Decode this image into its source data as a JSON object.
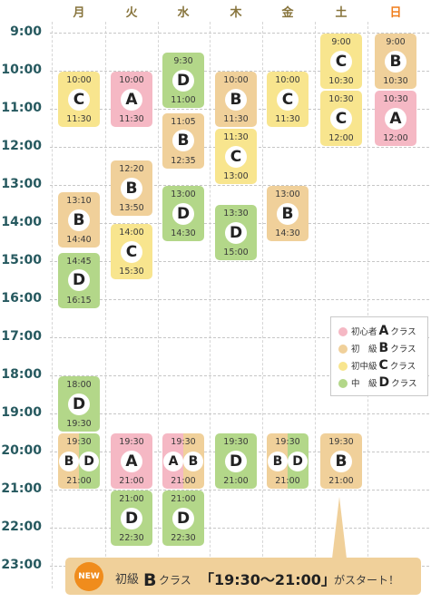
{
  "days": [
    "月",
    "火",
    "水",
    "木",
    "金",
    "土",
    "日"
  ],
  "hours": [
    "9:00",
    "10:00",
    "11:00",
    "12:00",
    "13:00",
    "14:00",
    "15:00",
    "16:00",
    "17:00",
    "18:00",
    "19:00",
    "20:00",
    "21:00",
    "22:00",
    "23:00"
  ],
  "colors": {
    "A": "#f5b8c4",
    "B": "#f0d09a",
    "C": "#f8e58e",
    "D": "#b3d789",
    "hour_text": "#26595f",
    "day_text": "#87743c",
    "sunday_text": "#f07e1c",
    "badge": "#f08c1c"
  },
  "blocks": [
    {
      "day": 0,
      "start": "10:00",
      "end": "11:30",
      "cls": "C"
    },
    {
      "day": 0,
      "start": "13:10",
      "end": "14:40",
      "cls": "B"
    },
    {
      "day": 0,
      "start": "14:45",
      "end": "16:15",
      "cls": "D"
    },
    {
      "day": 0,
      "start": "18:00",
      "end": "19:30",
      "cls": "D"
    },
    {
      "day": 0,
      "start": "19:30",
      "end": "21:00",
      "cls": "BD"
    },
    {
      "day": 1,
      "start": "10:00",
      "end": "11:30",
      "cls": "A"
    },
    {
      "day": 1,
      "start": "12:20",
      "end": "13:50",
      "cls": "B"
    },
    {
      "day": 1,
      "start": "14:00",
      "end": "15:30",
      "cls": "C"
    },
    {
      "day": 1,
      "start": "19:30",
      "end": "21:00",
      "cls": "A"
    },
    {
      "day": 1,
      "start": "21:00",
      "end": "22:30",
      "cls": "D"
    },
    {
      "day": 2,
      "start": "9:30",
      "end": "11:00",
      "cls": "D"
    },
    {
      "day": 2,
      "start": "11:05",
      "end": "12:35",
      "cls": "B"
    },
    {
      "day": 2,
      "start": "13:00",
      "end": "14:30",
      "cls": "D"
    },
    {
      "day": 2,
      "start": "19:30",
      "end": "21:00",
      "cls": "AB"
    },
    {
      "day": 2,
      "start": "21:00",
      "end": "22:30",
      "cls": "D"
    },
    {
      "day": 3,
      "start": "10:00",
      "end": "11:30",
      "cls": "B"
    },
    {
      "day": 3,
      "start": "11:30",
      "end": "13:00",
      "cls": "C"
    },
    {
      "day": 3,
      "start": "13:30",
      "end": "15:00",
      "cls": "D"
    },
    {
      "day": 3,
      "start": "19:30",
      "end": "21:00",
      "cls": "D"
    },
    {
      "day": 4,
      "start": "10:00",
      "end": "11:30",
      "cls": "C"
    },
    {
      "day": 4,
      "start": "13:00",
      "end": "14:30",
      "cls": "B"
    },
    {
      "day": 4,
      "start": "19:30",
      "end": "21:00",
      "cls": "BD"
    },
    {
      "day": 5,
      "start": "9:00",
      "end": "10:30",
      "cls": "C"
    },
    {
      "day": 5,
      "start": "10:30",
      "end": "12:00",
      "cls": "C"
    },
    {
      "day": 5,
      "start": "19:30",
      "end": "21:00",
      "cls": "B"
    },
    {
      "day": 6,
      "start": "9:00",
      "end": "10:30",
      "cls": "B"
    },
    {
      "day": 6,
      "start": "10:30",
      "end": "12:00",
      "cls": "A"
    }
  ],
  "legend": [
    {
      "prefix": "初心者",
      "letter": "A",
      "suffix": "クラス",
      "color": "#f5b8c4"
    },
    {
      "prefix": "初　級",
      "letter": "B",
      "suffix": "クラス",
      "color": "#f0d09a"
    },
    {
      "prefix": "初中級",
      "letter": "C",
      "suffix": "クラス",
      "color": "#f8e58e"
    },
    {
      "prefix": "中　級",
      "letter": "D",
      "suffix": "クラス",
      "color": "#b3d789"
    }
  ],
  "banner": {
    "badge": "NEW",
    "level": "初級",
    "letter": "B",
    "class_word": "クラス",
    "time": "「19:30〜21:00」",
    "tail": "がスタート！"
  }
}
